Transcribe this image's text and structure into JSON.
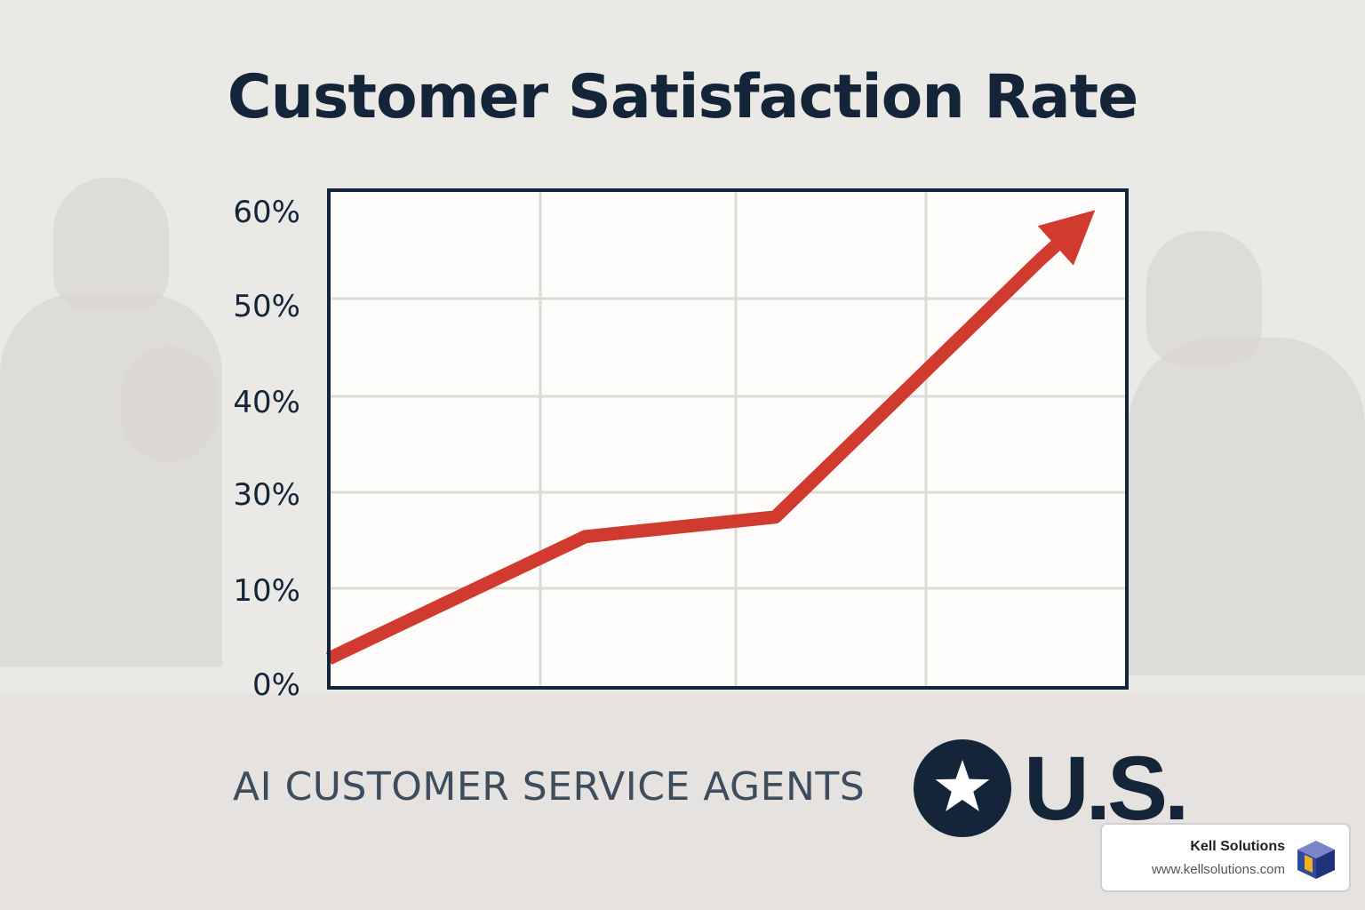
{
  "chart_data": {
    "type": "line",
    "title": "Customer Satisfaction Rate",
    "xlabel": "",
    "ylabel": "",
    "y_ticks": [
      "60%",
      "50%",
      "40%",
      "30%",
      "10%",
      "0%"
    ],
    "series": [
      {
        "points": [
          [
            0,
            3
          ],
          [
            1.35,
            15.5
          ],
          [
            2.35,
            17.5
          ],
          [
            3.75,
            44
          ],
          [
            3.95,
            47.5
          ]
        ]
      }
    ],
    "x_range": [
      0,
      4.2
    ],
    "y_range": [
      0,
      51
    ],
    "grid": true,
    "arrow_head": true,
    "colors": {
      "line": "#d13a2f",
      "frame": "#14253a",
      "grid": "#dedbd6",
      "plot_bg": "#fdfcfa"
    }
  },
  "footer": {
    "tagline": "AI CUSTOMER SERVICE AGENTS",
    "badge_icon": "star-icon",
    "mark": "U.S."
  },
  "watermark": {
    "name": "Kell Solutions",
    "url": "www.kellsolutions.com",
    "logo_icon": "cube-logo-icon"
  }
}
